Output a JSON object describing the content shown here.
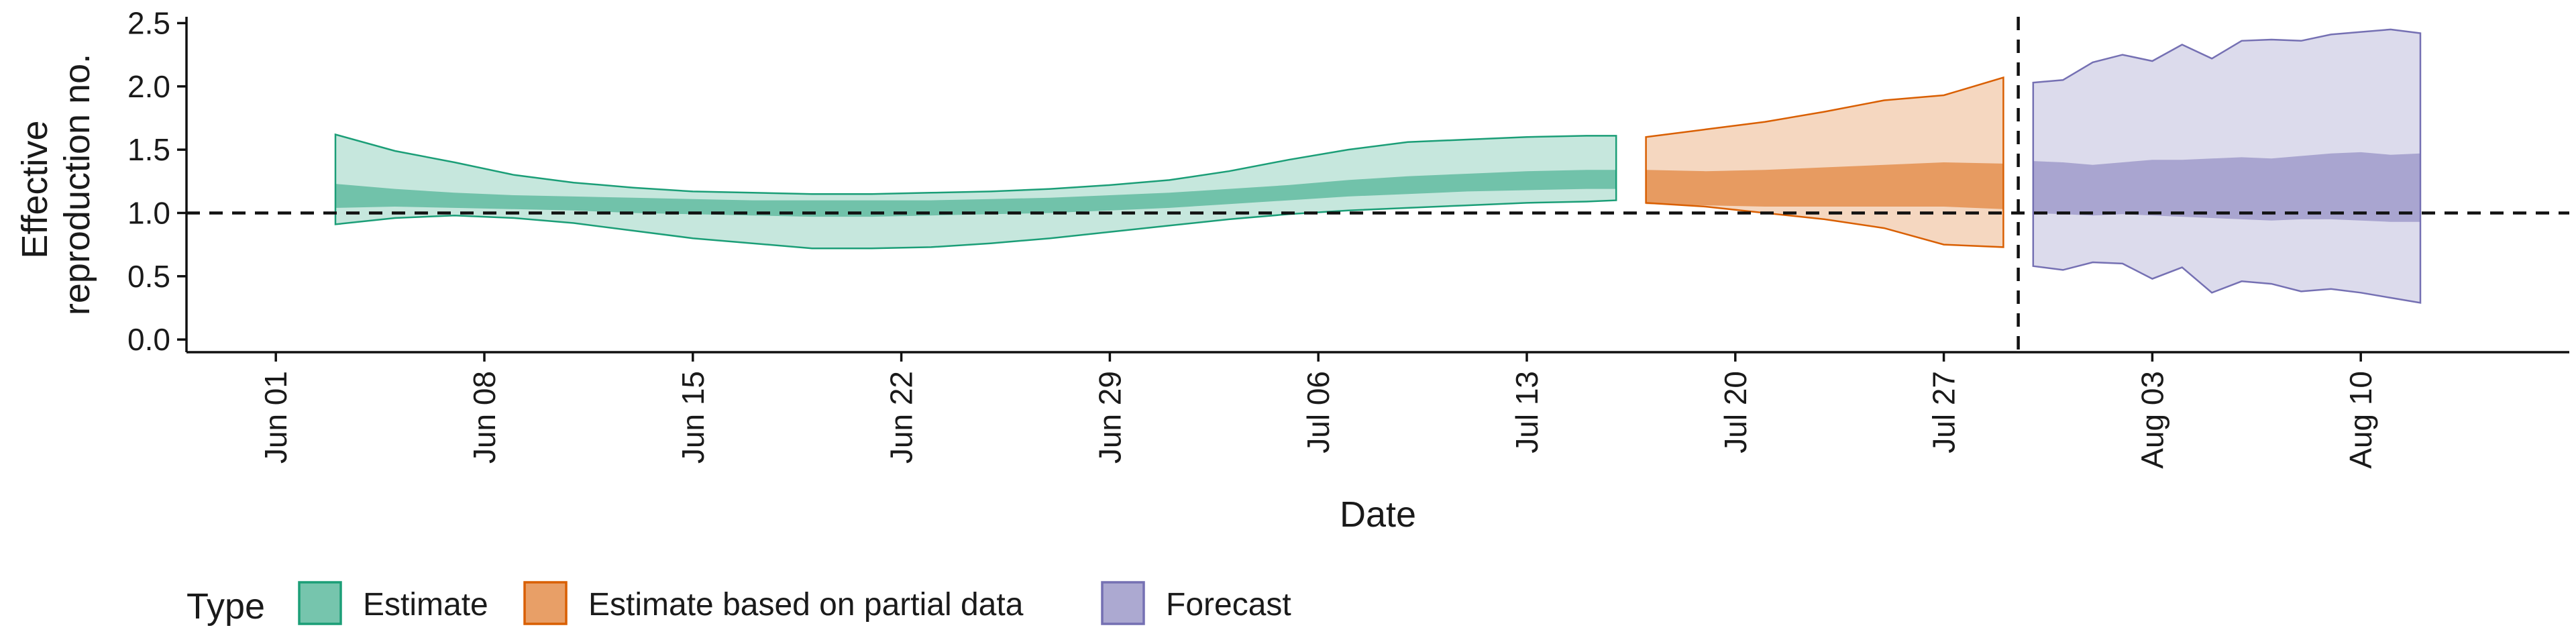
{
  "chart_data": {
    "type": "area",
    "xlabel": "Date",
    "ylabel": [
      "Effective",
      "reproduction no."
    ],
    "ylim": [
      -0.1,
      2.55
    ],
    "y_ticks": [
      0.0,
      0.5,
      1.0,
      1.5,
      2.0,
      2.5
    ],
    "y_tick_labels": [
      "0.0",
      "0.5",
      "1.0",
      "1.5",
      "2.0",
      "2.5"
    ],
    "x_range": [
      "2020-05-29",
      "2020-08-17"
    ],
    "x_ticks": [
      "2020-06-01",
      "2020-06-08",
      "2020-06-15",
      "2020-06-22",
      "2020-06-29",
      "2020-07-06",
      "2020-07-13",
      "2020-07-20",
      "2020-07-27",
      "2020-08-03",
      "2020-08-10"
    ],
    "x_tick_labels": [
      "Jun 01",
      "Jun 08",
      "Jun 15",
      "Jun 22",
      "Jun 29",
      "Jul 06",
      "Jul 13",
      "Jul 20",
      "Jul 27",
      "Aug 03",
      "Aug 10"
    ],
    "reference_line_y": 1.0,
    "forecast_start_line": "2020-07-29",
    "grid": false,
    "legend": {
      "title": "Type",
      "position": "bottom",
      "entries": [
        "Estimate",
        "Estimate based on partial data",
        "Forecast"
      ]
    },
    "series": [
      {
        "name": "Estimate",
        "fill_color": "#1b9e77",
        "x": [
          "2020-06-03",
          "2020-06-05",
          "2020-06-07",
          "2020-06-09",
          "2020-06-11",
          "2020-06-13",
          "2020-06-15",
          "2020-06-17",
          "2020-06-19",
          "2020-06-21",
          "2020-06-23",
          "2020-06-25",
          "2020-06-27",
          "2020-06-29",
          "2020-07-01",
          "2020-07-03",
          "2020-07-05",
          "2020-07-07",
          "2020-07-09",
          "2020-07-11",
          "2020-07-13",
          "2020-07-15",
          "2020-07-16"
        ],
        "lower_90": [
          0.91,
          0.96,
          0.98,
          0.96,
          0.92,
          0.86,
          0.8,
          0.76,
          0.72,
          0.72,
          0.73,
          0.76,
          0.8,
          0.85,
          0.9,
          0.95,
          0.99,
          1.02,
          1.04,
          1.06,
          1.08,
          1.09,
          1.1
        ],
        "upper_90": [
          1.62,
          1.49,
          1.4,
          1.3,
          1.24,
          1.2,
          1.17,
          1.16,
          1.15,
          1.15,
          1.16,
          1.17,
          1.19,
          1.22,
          1.26,
          1.33,
          1.42,
          1.5,
          1.56,
          1.58,
          1.6,
          1.61,
          1.61
        ],
        "lower_50": [
          1.04,
          1.05,
          1.04,
          1.03,
          1.02,
          1.0,
          0.99,
          0.98,
          0.97,
          0.97,
          0.98,
          0.99,
          1.0,
          1.02,
          1.04,
          1.07,
          1.1,
          1.13,
          1.15,
          1.17,
          1.18,
          1.19,
          1.19
        ],
        "upper_50": [
          1.23,
          1.19,
          1.16,
          1.14,
          1.13,
          1.12,
          1.11,
          1.1,
          1.1,
          1.1,
          1.1,
          1.11,
          1.12,
          1.14,
          1.16,
          1.19,
          1.22,
          1.26,
          1.29,
          1.31,
          1.33,
          1.34,
          1.34
        ]
      },
      {
        "name": "Estimate based on partial data",
        "fill_color": "#d95f02",
        "x": [
          "2020-07-17",
          "2020-07-19",
          "2020-07-21",
          "2020-07-23",
          "2020-07-25",
          "2020-07-27",
          "2020-07-29"
        ],
        "lower_90": [
          1.08,
          1.05,
          1.0,
          0.95,
          0.88,
          0.75,
          0.73
        ],
        "upper_90": [
          1.6,
          1.66,
          1.72,
          1.8,
          1.89,
          1.93,
          2.07
        ],
        "lower_50": [
          1.07,
          1.06,
          1.05,
          1.05,
          1.05,
          1.05,
          1.03
        ],
        "upper_50": [
          1.34,
          1.33,
          1.34,
          1.36,
          1.38,
          1.4,
          1.39
        ]
      },
      {
        "name": "Forecast",
        "fill_color": "#7570b3",
        "x": [
          "2020-07-30",
          "2020-07-31",
          "2020-08-01",
          "2020-08-02",
          "2020-08-03",
          "2020-08-04",
          "2020-08-05",
          "2020-08-06",
          "2020-08-07",
          "2020-08-08",
          "2020-08-09",
          "2020-08-10",
          "2020-08-11",
          "2020-08-12"
        ],
        "lower_90": [
          0.58,
          0.55,
          0.61,
          0.6,
          0.48,
          0.57,
          0.37,
          0.46,
          0.44,
          0.38,
          0.4,
          0.37,
          0.33,
          0.29
        ],
        "upper_90": [
          2.03,
          2.05,
          2.19,
          2.25,
          2.2,
          2.33,
          2.22,
          2.36,
          2.37,
          2.36,
          2.41,
          2.43,
          2.45,
          2.42
        ],
        "lower_50": [
          1.0,
          0.99,
          0.98,
          0.99,
          0.98,
          0.97,
          0.96,
          0.95,
          0.94,
          0.95,
          0.95,
          0.94,
          0.93,
          0.93
        ],
        "upper_50": [
          1.41,
          1.4,
          1.38,
          1.4,
          1.42,
          1.42,
          1.43,
          1.44,
          1.43,
          1.45,
          1.47,
          1.48,
          1.46,
          1.47
        ]
      }
    ]
  }
}
